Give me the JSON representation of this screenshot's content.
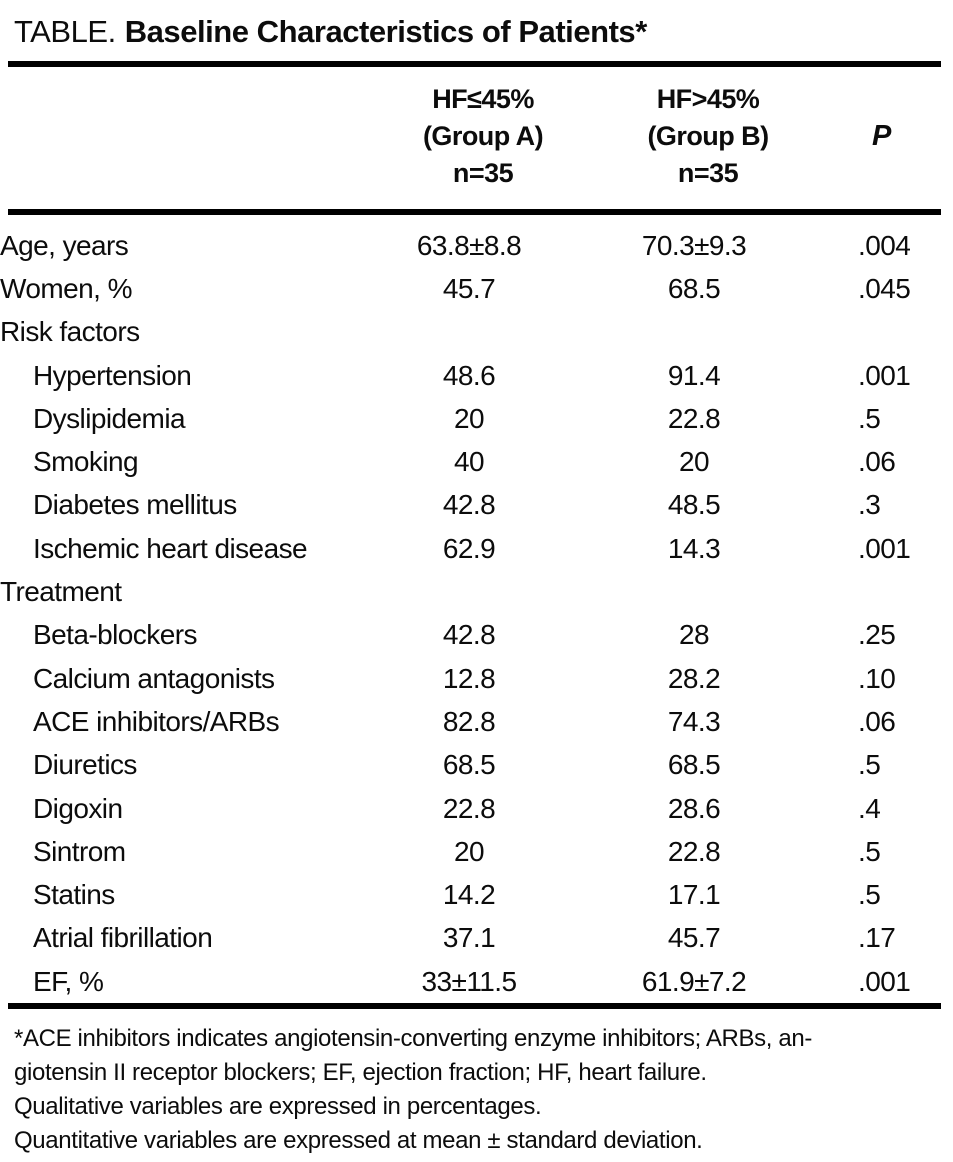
{
  "title": {
    "prefix": "TABLE.",
    "main": "Baseline Characteristics of Patients*"
  },
  "columns": {
    "group_a": {
      "line1": "HF≤45%",
      "line2": "(Group A)",
      "line3": "n=35"
    },
    "group_b": {
      "line1": "HF>45%",
      "line2": "(Group B)",
      "line3": "n=35"
    },
    "p": "P"
  },
  "rows": [
    {
      "label": "Age, years",
      "indent": false,
      "section": false,
      "group_a": "63.8±8.8",
      "group_b": "70.3±9.3",
      "p": ".004"
    },
    {
      "label": "Women, %",
      "indent": false,
      "section": false,
      "group_a": "45.7",
      "group_b": "68.5",
      "p": ".045"
    },
    {
      "label": "Risk factors",
      "indent": false,
      "section": true,
      "group_a": "",
      "group_b": "",
      "p": ""
    },
    {
      "label": "Hypertension",
      "indent": true,
      "section": false,
      "group_a": "48.6",
      "group_b": "91.4",
      "p": ".001"
    },
    {
      "label": "Dyslipidemia",
      "indent": true,
      "section": false,
      "group_a": "20",
      "group_b": "22.8",
      "p": ".5"
    },
    {
      "label": "Smoking",
      "indent": true,
      "section": false,
      "group_a": "40",
      "group_b": "20",
      "p": ".06"
    },
    {
      "label": "Diabetes mellitus",
      "indent": true,
      "section": false,
      "group_a": "42.8",
      "group_b": "48.5",
      "p": ".3"
    },
    {
      "label": "Ischemic heart disease",
      "indent": true,
      "section": false,
      "group_a": "62.9",
      "group_b": "14.3",
      "p": ".001"
    },
    {
      "label": "Treatment",
      "indent": false,
      "section": true,
      "group_a": "",
      "group_b": "",
      "p": ""
    },
    {
      "label": "Beta-blockers",
      "indent": true,
      "section": false,
      "group_a": "42.8",
      "group_b": "28",
      "p": ".25"
    },
    {
      "label": "Calcium antagonists",
      "indent": true,
      "section": false,
      "group_a": "12.8",
      "group_b": "28.2",
      "p": ".10"
    },
    {
      "label": "ACE inhibitors/ARBs",
      "indent": true,
      "section": false,
      "group_a": "82.8",
      "group_b": "74.3",
      "p": ".06"
    },
    {
      "label": "Diuretics",
      "indent": true,
      "section": false,
      "group_a": "68.5",
      "group_b": "68.5",
      "p": ".5"
    },
    {
      "label": "Digoxin",
      "indent": true,
      "section": false,
      "group_a": "22.8",
      "group_b": "28.6",
      "p": ".4"
    },
    {
      "label": "Sintrom",
      "indent": true,
      "section": false,
      "group_a": "20",
      "group_b": "22.8",
      "p": ".5"
    },
    {
      "label": "Statins",
      "indent": true,
      "section": false,
      "group_a": "14.2",
      "group_b": "17.1",
      "p": ".5"
    },
    {
      "label": "Atrial fibrillation",
      "indent": true,
      "section": false,
      "group_a": "37.1",
      "group_b": "45.7",
      "p": ".17"
    },
    {
      "label": "EF, %",
      "indent": true,
      "section": false,
      "group_a": "33±11.5",
      "group_b": "61.9±7.2",
      "p": ".001"
    }
  ],
  "footnotes": [
    "*ACE inhibitors indicates angiotensin-converting enzyme inhibitors; ARBs, an-",
    "giotensin II receptor blockers; EF, ejection fraction; HF, heart failure.",
    "Qualitative variables are expressed in percentages.",
    "Quantitative variables are expressed at mean ± standard deviation."
  ]
}
